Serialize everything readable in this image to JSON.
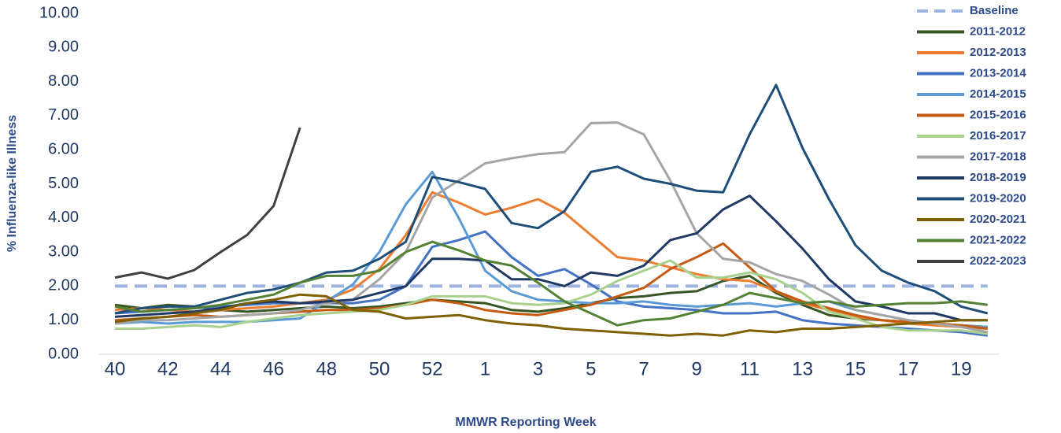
{
  "chart_data": {
    "type": "line",
    "y_label": "% Influenza-like Illness",
    "x_label": "MMWR Reporting Week",
    "categories": [
      "40",
      null,
      "42",
      null,
      "44",
      null,
      "46",
      null,
      "48",
      null,
      "50",
      null,
      "52",
      null,
      "1",
      null,
      "3",
      null,
      "5",
      null,
      "7",
      null,
      "9",
      null,
      "11",
      null,
      "13",
      null,
      "15",
      null,
      "17",
      null,
      "19",
      null
    ],
    "ylim": [
      0,
      10
    ],
    "yticks": [
      {
        "value": 0,
        "label": "0.00"
      },
      {
        "value": 1,
        "label": "1.00"
      },
      {
        "value": 2,
        "label": "2.00"
      },
      {
        "value": 3,
        "label": "3.00"
      },
      {
        "value": 4,
        "label": "4.00"
      },
      {
        "value": 5,
        "label": "5.00"
      },
      {
        "value": 6,
        "label": "6.00"
      },
      {
        "value": 7,
        "label": "7.00"
      },
      {
        "value": 8,
        "label": "8.00"
      },
      {
        "value": 9,
        "label": "9.00"
      },
      {
        "value": 10,
        "label": "10.00"
      }
    ],
    "grid": false,
    "legend": "top-right",
    "series": [
      {
        "name": "Baseline",
        "color": "#9db3e0",
        "dashed": true,
        "values": [
          2,
          2,
          2,
          2,
          2,
          2,
          2,
          2,
          2,
          2,
          2,
          2,
          2,
          2,
          2,
          2,
          2,
          2,
          2,
          2,
          2,
          2,
          2,
          2,
          2,
          2,
          2,
          2,
          2,
          2,
          2,
          2,
          2,
          2
        ]
      },
      {
        "name": "2011-2012",
        "color": "#375623",
        "values": [
          1.45,
          1.35,
          1.45,
          1.4,
          1.3,
          1.25,
          1.3,
          1.35,
          1.4,
          1.35,
          1.4,
          1.5,
          1.6,
          1.55,
          1.5,
          1.3,
          1.25,
          1.35,
          1.5,
          1.65,
          1.7,
          1.8,
          1.85,
          2.15,
          2.3,
          1.8,
          1.45,
          1.15,
          1.05,
          1.0,
          0.95,
          0.9,
          0.85,
          0.8
        ]
      },
      {
        "name": "2012-2013",
        "color": "#ed7d31",
        "values": [
          1.3,
          1.35,
          1.3,
          1.25,
          1.3,
          1.35,
          1.4,
          1.5,
          1.6,
          1.9,
          2.5,
          3.5,
          4.75,
          4.45,
          4.1,
          4.3,
          4.55,
          4.15,
          3.5,
          2.85,
          2.75,
          2.55,
          2.35,
          2.2,
          2.15,
          1.85,
          1.5,
          1.3,
          1.1,
          1.0,
          0.9,
          0.85,
          0.8,
          0.75
        ]
      },
      {
        "name": "2013-2014",
        "color": "#4472c4",
        "values": [
          1.2,
          1.25,
          1.3,
          1.35,
          1.4,
          1.45,
          1.5,
          1.5,
          1.5,
          1.5,
          1.6,
          2.0,
          3.15,
          3.35,
          3.6,
          2.85,
          2.3,
          2.5,
          2.05,
          1.55,
          1.4,
          1.35,
          1.3,
          1.2,
          1.2,
          1.25,
          1.0,
          0.9,
          0.85,
          0.8,
          0.75,
          0.7,
          0.65,
          0.55
        ]
      },
      {
        "name": "2014-2015",
        "color": "#5b9bd5",
        "values": [
          0.9,
          0.95,
          0.9,
          0.95,
          0.95,
          0.95,
          1.0,
          1.05,
          1.55,
          2.05,
          3.0,
          4.4,
          5.35,
          4.0,
          2.45,
          1.85,
          1.6,
          1.55,
          1.5,
          1.5,
          1.55,
          1.45,
          1.4,
          1.45,
          1.5,
          1.4,
          1.5,
          1.55,
          1.3,
          1.15,
          1.0,
          0.9,
          0.85,
          0.8
        ]
      },
      {
        "name": "2015-2016",
        "color": "#c55a11",
        "values": [
          1.0,
          1.05,
          1.1,
          1.15,
          1.1,
          1.15,
          1.2,
          1.25,
          1.3,
          1.3,
          1.35,
          1.45,
          1.6,
          1.5,
          1.3,
          1.2,
          1.15,
          1.3,
          1.45,
          1.7,
          1.95,
          2.5,
          2.85,
          3.25,
          2.55,
          1.85,
          1.55,
          1.35,
          1.15,
          1.0,
          0.95,
          0.9,
          0.85,
          0.75
        ]
      },
      {
        "name": "2016-2017",
        "color": "#a9d18e",
        "values": [
          0.75,
          0.75,
          0.8,
          0.85,
          0.8,
          0.95,
          1.05,
          1.15,
          1.2,
          1.25,
          1.3,
          1.45,
          1.7,
          1.7,
          1.7,
          1.5,
          1.45,
          1.5,
          1.75,
          2.15,
          2.45,
          2.75,
          2.25,
          2.25,
          2.4,
          2.2,
          1.8,
          1.25,
          1.05,
          0.8,
          0.7,
          0.7,
          0.7,
          0.6
        ]
      },
      {
        "name": "2017-2018",
        "color": "#a5a5a5",
        "values": [
          0.9,
          1.0,
          1.0,
          1.05,
          1.1,
          1.15,
          1.2,
          1.3,
          1.5,
          1.6,
          2.2,
          3.0,
          4.6,
          5.1,
          5.6,
          5.75,
          5.87,
          5.93,
          6.78,
          6.8,
          6.45,
          5.1,
          3.55,
          2.8,
          2.7,
          2.35,
          2.15,
          1.75,
          1.3,
          1.15,
          1.0,
          0.9,
          0.8,
          0.65
        ]
      },
      {
        "name": "2018-2019",
        "color": "#1f3864",
        "values": [
          1.1,
          1.15,
          1.2,
          1.25,
          1.35,
          1.5,
          1.55,
          1.5,
          1.55,
          1.6,
          1.8,
          2.0,
          2.8,
          2.8,
          2.75,
          2.2,
          2.2,
          2.0,
          2.4,
          2.3,
          2.6,
          3.35,
          3.55,
          4.25,
          4.65,
          3.9,
          3.1,
          2.2,
          1.55,
          1.4,
          1.2,
          1.2,
          1.0,
          1.0
        ]
      },
      {
        "name": "2019-2020",
        "color": "#1f4e79",
        "values": [
          1.2,
          1.35,
          1.4,
          1.4,
          1.6,
          1.8,
          1.9,
          2.1,
          2.4,
          2.45,
          2.8,
          3.3,
          5.2,
          5.05,
          4.85,
          3.85,
          3.7,
          4.2,
          5.35,
          5.5,
          5.15,
          5.0,
          4.8,
          4.75,
          6.45,
          7.9,
          6.05,
          4.55,
          3.2,
          2.45,
          2.1,
          1.85,
          1.4,
          1.2
        ]
      },
      {
        "name": "2020-2021",
        "color": "#7f6000",
        "values": [
          0.95,
          1.05,
          1.1,
          1.2,
          1.3,
          1.5,
          1.6,
          1.75,
          1.7,
          1.3,
          1.25,
          1.05,
          1.1,
          1.15,
          1.0,
          0.9,
          0.85,
          0.75,
          0.7,
          0.65,
          0.6,
          0.55,
          0.6,
          0.55,
          0.7,
          0.65,
          0.75,
          0.75,
          0.8,
          0.85,
          0.9,
          0.95,
          1.0,
          1.0
        ]
      },
      {
        "name": "2021-2022",
        "color": "#548235",
        "values": [
          1.4,
          1.25,
          1.3,
          1.35,
          1.45,
          1.6,
          1.75,
          2.1,
          2.3,
          2.3,
          2.45,
          3.0,
          3.3,
          3.05,
          2.75,
          2.6,
          2.1,
          1.55,
          1.2,
          0.85,
          1.0,
          1.05,
          1.25,
          1.45,
          1.8,
          1.65,
          1.5,
          1.55,
          1.4,
          1.45,
          1.5,
          1.5,
          1.55,
          1.45
        ]
      },
      {
        "name": "2022-2023",
        "color": "#404040",
        "values": [
          2.25,
          2.4,
          2.22,
          2.47,
          3.0,
          3.5,
          4.35,
          6.65,
          null,
          null,
          null,
          null,
          null,
          null,
          null,
          null,
          null,
          null,
          null,
          null,
          null,
          null,
          null,
          null,
          null,
          null,
          null,
          null,
          null,
          null,
          null,
          null,
          null,
          null
        ]
      }
    ]
  }
}
